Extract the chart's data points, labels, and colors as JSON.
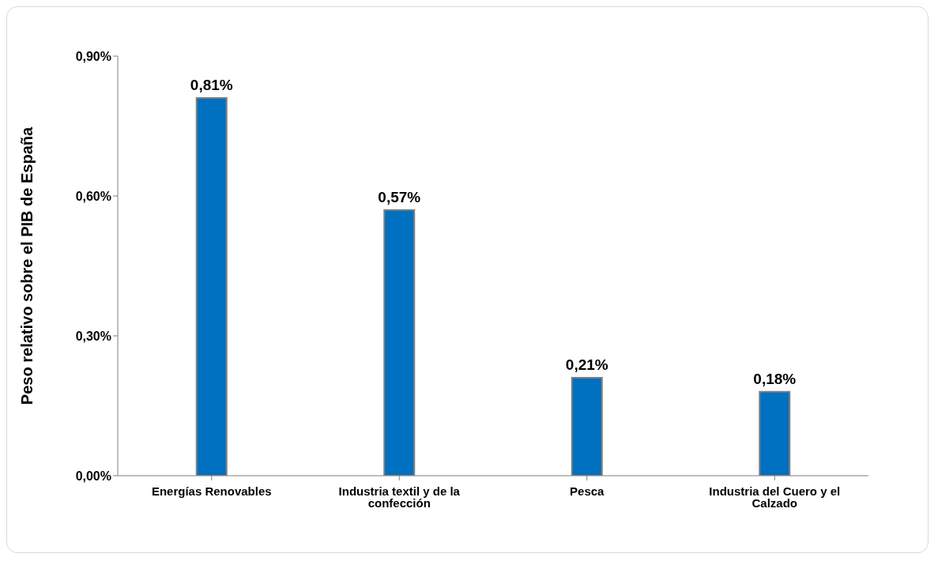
{
  "chart_data": {
    "type": "bar",
    "ylabel": "Peso relativo sobre el PIB de España",
    "categories": [
      "Energías Renovables",
      "Industria textil y de la confección",
      "Pesca",
      "Industria del Cuero y el Calzado"
    ],
    "values": [
      0.81,
      0.57,
      0.21,
      0.18
    ],
    "value_labels": [
      "0,81%",
      "0,57%",
      "0,21%",
      "0,18%"
    ],
    "color": "#0070c0",
    "ylim": [
      0,
      0.9
    ],
    "yticks": [
      {
        "value": 0,
        "label": "0,00%"
      },
      {
        "value": 0.3,
        "label": "0,30%"
      },
      {
        "value": 0.6,
        "label": "0,60%"
      },
      {
        "value": 0.9,
        "label": "0,90%"
      }
    ],
    "grid": false,
    "legend": false
  }
}
